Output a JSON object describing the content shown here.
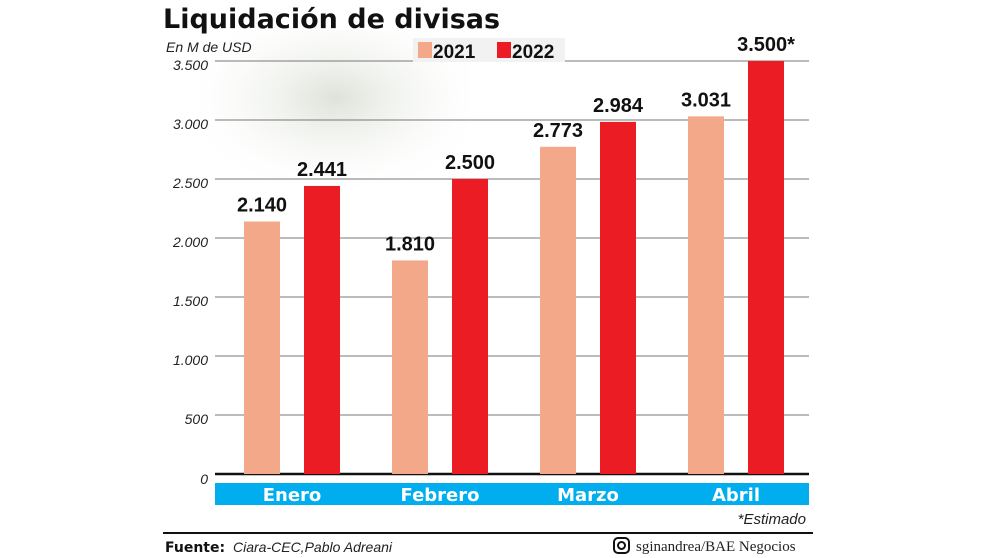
{
  "chart_data": {
    "type": "bar",
    "title": "Liquidación de divisas",
    "ylabel": "En M de USD",
    "categories": [
      "Enero",
      "Febrero",
      "Marzo",
      "Abril"
    ],
    "series": [
      {
        "name": "2021",
        "color": "#f4a88a",
        "values": [
          2140,
          1810,
          2773,
          3031
        ],
        "labels": [
          "2.140",
          "1.810",
          "2.773",
          "3.031"
        ]
      },
      {
        "name": "2022",
        "color": "#ec1c24",
        "values": [
          2441,
          2500,
          2984,
          3500
        ],
        "labels": [
          "2.441",
          "2.500",
          "2.984",
          "3.500*"
        ]
      }
    ],
    "ylim": [
      0,
      3500
    ],
    "yticks": [
      0,
      500,
      1000,
      1500,
      2000,
      2500,
      3000,
      3500
    ],
    "ytick_labels": [
      "0",
      "500",
      "1.000",
      "1.500",
      "2.000",
      "2.500",
      "3.000",
      "3.500"
    ],
    "grid": true,
    "legend": "top",
    "category_band_color": "#00aeef",
    "note": "*Estimado"
  },
  "footer": {
    "source_label": "Fuente:",
    "source": "Ciara-CEC,Pablo Adreani",
    "credit_icon": "instagram-icon",
    "credit": "sginandrea/BAE Negocios"
  }
}
